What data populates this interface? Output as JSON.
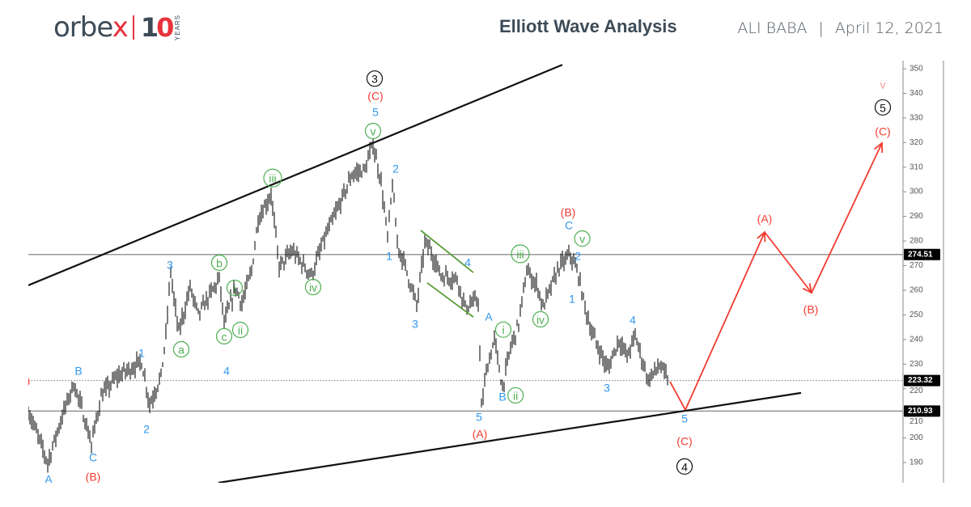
{
  "header": {
    "logo_text": "orbex",
    "logo_badge": "10",
    "logo_badge_sub": "YEARS",
    "title": "Elliott Wave Analysis",
    "instrument": "ALI BABA",
    "separator": "|",
    "date": "April 12, 2021"
  },
  "colors": {
    "wave_blue": "#2f97ee",
    "wave_red": "#f23b30",
    "wave_green": "#4caf50",
    "wave_pink": "#f59a9a",
    "wave_black": "#111111",
    "price_bars": "#111111",
    "level_line": "#777777",
    "tag_bg": "#000000"
  },
  "chart_data": {
    "type": "line",
    "title": "",
    "xlabel": "",
    "ylabel": "",
    "ylim": [
      182,
      353
    ],
    "yticks": [
      190,
      200,
      210,
      220,
      230,
      240,
      250,
      260,
      270,
      280,
      290,
      300,
      310,
      320,
      330,
      340,
      350
    ],
    "grid": false,
    "price_path": [
      [
        0,
        211
      ],
      [
        12,
        190
      ],
      [
        20,
        207
      ],
      [
        28,
        222
      ],
      [
        33,
        212
      ],
      [
        39,
        197.5
      ],
      [
        45,
        217
      ],
      [
        55,
        225
      ],
      [
        70,
        231
      ],
      [
        75,
        213.7
      ],
      [
        82,
        225
      ],
      [
        85,
        241.6
      ],
      [
        88,
        268
      ],
      [
        90,
        256
      ],
      [
        93,
        243
      ],
      [
        100,
        261
      ],
      [
        105,
        250
      ],
      [
        118,
        264.6
      ],
      [
        121,
        246.5
      ],
      [
        128,
        261
      ],
      [
        132,
        254.7
      ],
      [
        138,
        268
      ],
      [
        142,
        289
      ],
      [
        150,
        299
      ],
      [
        155,
        269.5
      ],
      [
        163,
        276
      ],
      [
        175,
        266
      ],
      [
        183,
        281
      ],
      [
        193,
        295.8
      ],
      [
        200,
        307
      ],
      [
        208,
        309
      ],
      [
        213,
        319.4
      ],
      [
        218,
        304
      ],
      [
        222,
        281
      ],
      [
        225,
        303
      ],
      [
        228,
        279
      ],
      [
        233,
        269.5
      ],
      [
        240,
        253.7
      ],
      [
        245,
        279
      ],
      [
        248,
        277
      ],
      [
        255,
        266
      ],
      [
        265,
        264.6
      ],
      [
        270,
        253
      ],
      [
        278,
        256
      ],
      [
        280,
        212
      ],
      [
        283,
        227
      ],
      [
        288,
        240
      ],
      [
        293,
        220.3
      ],
      [
        298,
        236.7
      ],
      [
        303,
        246.5
      ],
      [
        308,
        268
      ],
      [
        315,
        261
      ],
      [
        318,
        253
      ],
      [
        328,
        269.5
      ],
      [
        335,
        274.5
      ],
      [
        340,
        266
      ],
      [
        343,
        256
      ],
      [
        348,
        243
      ],
      [
        358,
        228
      ],
      [
        365,
        240
      ],
      [
        370,
        233
      ],
      [
        375,
        241.6
      ],
      [
        383,
        223.5
      ],
      [
        390,
        229.5
      ],
      [
        396,
        222.9
      ]
    ],
    "levels": [
      {
        "value": 274.51,
        "label": "274.51",
        "style": "solid"
      },
      {
        "value": 223.32,
        "label": "223.32",
        "style": "dotted"
      },
      {
        "value": 210.93,
        "label": "210.93",
        "style": "solid"
      }
    ],
    "trendlines": [
      {
        "from": [
          0,
          262
        ],
        "to": [
          330,
          351.6
        ],
        "color": "#111111"
      },
      {
        "from": [
          117.5,
          181.8
        ],
        "to": [
          477.5,
          218.3
        ],
        "color": "#111111"
      },
      {
        "from": [
          242.5,
          284.3
        ],
        "to": [
          275,
          267.2
        ],
        "color": "#5a9e3a"
      },
      {
        "from": [
          246.5,
          263
        ],
        "to": [
          275,
          249.1
        ],
        "color": "#5a9e3a"
      }
    ],
    "projection": [
      [
        396.5,
        222.9
      ],
      [
        406,
        211.4
      ],
      [
        455,
        283.6
      ],
      [
        484,
        259
      ],
      [
        527.5,
        319.8
      ]
    ],
    "wave_labels": [
      {
        "text": "A",
        "x": 12.5,
        "y": 183.4,
        "color": "blue"
      },
      {
        "text": "B",
        "x": 31,
        "y": 227.5,
        "color": "blue"
      },
      {
        "text": "C",
        "x": 40,
        "y": 192.3,
        "color": "blue"
      },
      {
        "text": "1",
        "x": 70,
        "y": 234.7,
        "color": "blue"
      },
      {
        "text": "2",
        "x": 73,
        "y": 203.8,
        "color": "blue"
      },
      {
        "text": "3",
        "x": 87.5,
        "y": 270.5,
        "color": "blue"
      },
      {
        "text": "4",
        "x": 122.5,
        "y": 227.5,
        "color": "blue"
      },
      {
        "text": "5",
        "x": 214.5,
        "y": 332.6,
        "color": "blue"
      },
      {
        "text": "2",
        "x": 227,
        "y": 309.6,
        "color": "blue"
      },
      {
        "text": "1",
        "x": 223,
        "y": 274.1,
        "color": "blue"
      },
      {
        "text": "3",
        "x": 239,
        "y": 246.5,
        "color": "blue"
      },
      {
        "text": "4",
        "x": 271.5,
        "y": 271.5,
        "color": "blue"
      },
      {
        "text": "A",
        "x": 284.5,
        "y": 249.5,
        "color": "blue"
      },
      {
        "text": "B",
        "x": 293,
        "y": 217,
        "color": "blue"
      },
      {
        "text": "5",
        "x": 278.5,
        "y": 208.7,
        "color": "blue"
      },
      {
        "text": "C",
        "x": 334,
        "y": 286.6,
        "color": "blue"
      },
      {
        "text": "2",
        "x": 339.5,
        "y": 274.1,
        "color": "blue"
      },
      {
        "text": "1",
        "x": 336,
        "y": 256.7,
        "color": "blue"
      },
      {
        "text": "4",
        "x": 373.5,
        "y": 248.2,
        "color": "blue"
      },
      {
        "text": "3",
        "x": 357.5,
        "y": 220.6,
        "color": "blue"
      },
      {
        "text": "5",
        "x": 405.5,
        "y": 208.1,
        "color": "blue"
      },
      {
        "text": ")",
        "x": 0,
        "y": 223.5,
        "color": "red"
      },
      {
        "text": "(B)",
        "x": 40,
        "y": 184.4,
        "color": "red"
      },
      {
        "text": "(C)",
        "x": 214.5,
        "y": 339.2,
        "color": "red"
      },
      {
        "text": "(A)",
        "x": 279,
        "y": 201.8,
        "color": "red"
      },
      {
        "text": "(B)",
        "x": 333.5,
        "y": 291.9,
        "color": "red"
      },
      {
        "text": "(C)",
        "x": 405.5,
        "y": 198.9,
        "color": "red"
      },
      {
        "text": "(A)",
        "x": 455,
        "y": 289.3,
        "color": "red"
      },
      {
        "text": "(B)",
        "x": 483.5,
        "y": 252.4,
        "color": "red"
      },
      {
        "text": "(C)",
        "x": 528,
        "y": 324.7,
        "color": "red"
      },
      {
        "text": "v",
        "x": 528,
        "y": 343.8,
        "color": "pink"
      },
      {
        "text": "3",
        "x": 214,
        "y": 346,
        "color": "black",
        "circled": true
      },
      {
        "text": "4",
        "x": 405.5,
        "y": 188.4,
        "color": "black",
        "circled": true
      },
      {
        "text": "5",
        "x": 528,
        "y": 334.3,
        "color": "black",
        "circled": true
      },
      {
        "text": "v",
        "x": 213,
        "y": 324.7,
        "color": "green",
        "circled": true
      },
      {
        "text": "iii",
        "x": 151,
        "y": 305.6,
        "color": "green",
        "circled": true
      },
      {
        "text": "iv",
        "x": 176,
        "y": 261.3,
        "color": "green",
        "circled": true
      },
      {
        "text": "b",
        "x": 118,
        "y": 271.2,
        "color": "green",
        "circled": true
      },
      {
        "text": "i",
        "x": 127.5,
        "y": 261,
        "color": "green",
        "circled": true
      },
      {
        "text": "ii",
        "x": 131,
        "y": 243.9,
        "color": "green",
        "circled": true
      },
      {
        "text": "c",
        "x": 121,
        "y": 241.3,
        "color": "green",
        "circled": true
      },
      {
        "text": "a",
        "x": 94.5,
        "y": 236,
        "color": "green",
        "circled": true
      },
      {
        "text": "iii",
        "x": 304,
        "y": 274.8,
        "color": "green",
        "circled": true
      },
      {
        "text": "iv",
        "x": 316.5,
        "y": 248.2,
        "color": "green",
        "circled": true
      },
      {
        "text": "i",
        "x": 293.5,
        "y": 244,
        "color": "green",
        "circled": true
      },
      {
        "text": "ii",
        "x": 297.5,
        "y": 217.3,
        "color": "green",
        "circled": true
      },
      {
        "text": "v",
        "x": 335,
        "y": 281,
        "color": "green",
        "circled": true
      }
    ]
  }
}
